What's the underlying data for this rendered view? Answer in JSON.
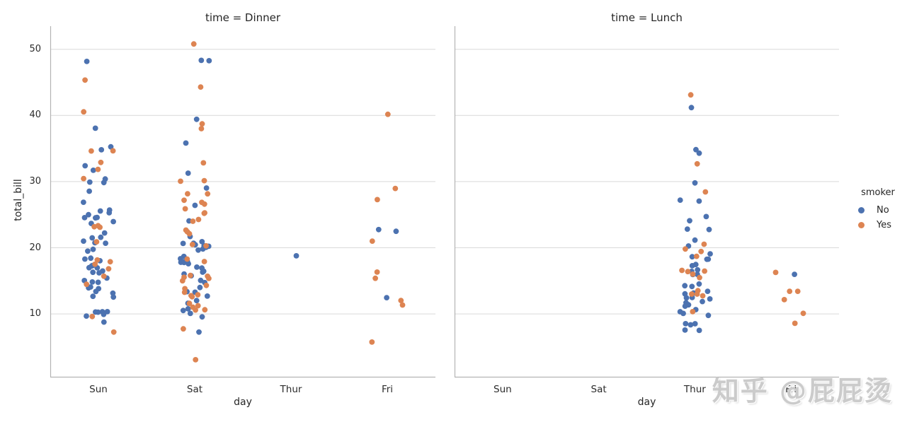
{
  "page": {
    "background": "#ffffff"
  },
  "watermark": {
    "text": "知乎 @屁屁烫",
    "color": "#cbcbcb"
  },
  "chart_data": {
    "type": "strip",
    "xlabel": "day",
    "ylabel": "total_bill",
    "categories": [
      "Sun",
      "Sat",
      "Thur",
      "Fri"
    ],
    "yticks": [
      10,
      20,
      30,
      40,
      50
    ],
    "ylim": [
      0.5,
      53.5
    ],
    "grid": true,
    "grid_color": "#d9d9d9",
    "spine_color": "#b3b3b3",
    "colors": {
      "No": "#4C72B0",
      "Yes": "#DD8452"
    },
    "legend": {
      "title": "smoker",
      "entries": [
        "No",
        "Yes"
      ],
      "position": "right"
    },
    "facets": [
      {
        "title": "time = Dinner",
        "days": {
          "Sun": {
            "No": [
              16.99,
              10.34,
              21.01,
              23.68,
              24.59,
              25.29,
              8.77,
              26.88,
              15.04,
              14.78,
              10.27,
              35.26,
              15.42,
              18.43,
              14.83,
              21.58,
              10.33,
              16.29,
              16.97,
              17.46,
              13.94,
              9.68,
              30.4,
              18.29,
              22.23,
              32.4,
              28.55,
              18.04,
              12.54,
              10.29,
              34.81,
              9.94,
              25.56,
              19.49,
              38.07,
              23.95,
              25.71,
              17.31,
              29.93,
              14.07,
              13.13,
              17.26,
              24.55,
              19.77,
              29.85,
              48.17,
              25.0,
              13.39,
              16.49,
              21.5,
              12.66,
              16.21,
              13.81,
              24.52,
              20.76,
              31.71,
              20.69
            ],
            "Yes": [
              17.51,
              31.85,
              16.82,
              32.9,
              17.89,
              14.48,
              9.6,
              34.63,
              34.65,
              23.33,
              45.35,
              23.17,
              40.55,
              20.9,
              30.46,
              18.15,
              23.1,
              15.69,
              7.25
            ]
          },
          "Sat": {
            "No": [
              20.65,
              17.92,
              20.29,
              15.77,
              39.42,
              19.82,
              17.81,
              13.37,
              12.69,
              21.7,
              19.65,
              9.55,
              18.35,
              15.06,
              20.69,
              17.78,
              24.06,
              16.31,
              16.93,
              18.69,
              31.27,
              16.04,
              26.41,
              48.27,
              17.59,
              20.08,
              16.45,
              20.23,
              12.02,
              17.07,
              14.73,
              10.51,
              20.92,
              18.24,
              14.0,
              7.25,
              48.33,
              20.45,
              13.28,
              11.61,
              10.77,
              10.07,
              35.83,
              29.03,
              17.82
            ],
            "Yes": [
              38.01,
              11.24,
              20.29,
              13.81,
              11.02,
              18.29,
              3.07,
              15.01,
              26.86,
              25.28,
              17.92,
              44.3,
              22.42,
              15.36,
              20.49,
              25.21,
              14.31,
              10.59,
              10.63,
              50.81,
              15.81,
              26.59,
              38.73,
              24.27,
              12.76,
              30.06,
              25.89,
              13.27,
              28.17,
              12.9,
              28.15,
              11.59,
              7.74,
              30.14,
              22.12,
              24.01,
              15.69,
              15.53,
              12.6,
              32.83,
              27.18,
              22.67
            ]
          },
          "Thur": {
            "No": [
              18.78
            ],
            "Yes": []
          },
          "Fri": {
            "No": [
              22.49,
              22.75,
              12.46
            ],
            "Yes": [
              28.97,
              5.75,
              16.32,
              40.17,
              27.28,
              12.03,
              21.01,
              11.35,
              15.38
            ]
          }
        }
      },
      {
        "title": "time = Lunch",
        "days": {
          "Sun": {
            "No": [],
            "Yes": []
          },
          "Sat": {
            "No": [],
            "Yes": []
          },
          "Thur": {
            "No": [
              27.2,
              22.76,
              17.29,
              16.66,
              10.07,
              15.98,
              34.83,
              13.03,
              18.28,
              24.71,
              21.16,
              10.65,
              12.43,
              24.08,
              11.69,
              13.42,
              14.26,
              15.95,
              12.48,
              29.8,
              8.52,
              14.52,
              11.38,
              22.82,
              19.08,
              20.27,
              11.17,
              12.26,
              18.26,
              8.51,
              10.33,
              14.15,
              13.16,
              17.47,
              34.3,
              41.19,
              27.05,
              16.43,
              8.35,
              18.64,
              11.87,
              9.78,
              7.51,
              7.56
            ],
            "Yes": [
              19.44,
              32.68,
              16.0,
              19.81,
              28.44,
              15.48,
              16.58,
              10.34,
              43.11,
              13.0,
              13.51,
              18.71,
              12.74,
              13.0,
              16.4,
              20.53,
              16.47
            ]
          },
          "Fri": {
            "No": [
              15.98
            ],
            "Yes": [
              12.16,
              13.42,
              8.58,
              13.42,
              16.27,
              10.09
            ]
          }
        }
      }
    ]
  }
}
